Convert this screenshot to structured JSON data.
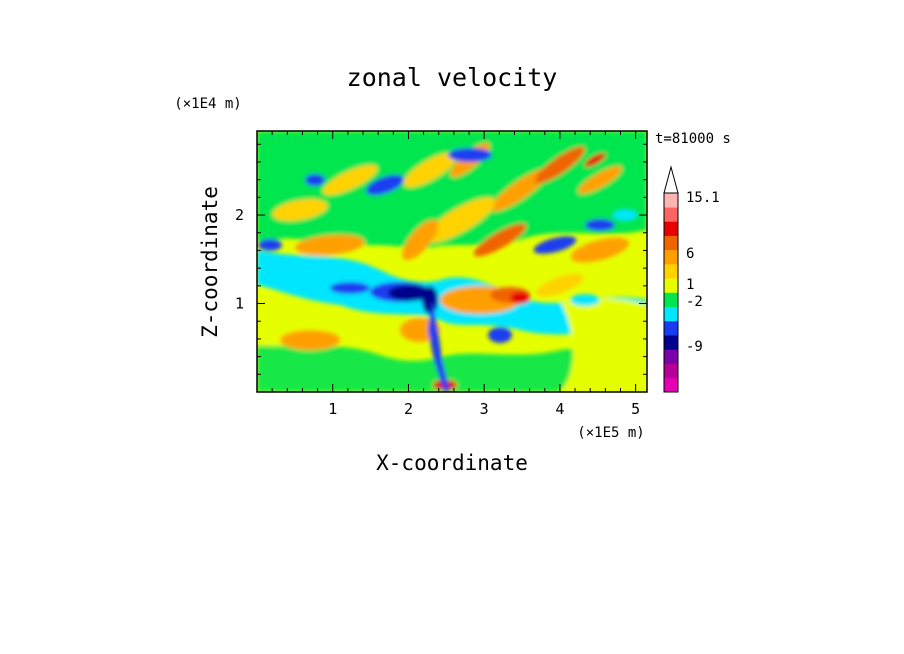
{
  "chart_data": {
    "type": "heatmap",
    "title": "zonal velocity",
    "xlabel": "X-coordinate",
    "ylabel": "Z-coordinate",
    "x_unit": "(×1E5 m)",
    "y_unit": "(×1E4 m)",
    "time_label": "t=81000 s",
    "xlim": [
      0,
      5.15
    ],
    "ylim": [
      0,
      2.95
    ],
    "x_ticks": [
      "1",
      "2",
      "3",
      "4",
      "5"
    ],
    "x_tick_values": [
      1,
      2,
      3,
      4,
      5
    ],
    "y_ticks": [
      "1",
      "2"
    ],
    "y_tick_values": [
      1,
      2
    ],
    "colorbar": {
      "labels": [
        "15.1",
        "6",
        "1",
        "-2",
        "-9"
      ],
      "colors": [
        "#e600b4",
        "#b40096",
        "#7a00a8",
        "#00008c",
        "#1a3cf0",
        "#00e6ff",
        "#00e650",
        "#e6ff00",
        "#ffd200",
        "#ffa000",
        "#f06400",
        "#e60000",
        "#ff6464",
        "#ffb4b4"
      ],
      "extend_top": true
    },
    "field_regions": [
      {
        "name": "background",
        "value": "near-zero positive",
        "color": "#e6ff00"
      },
      {
        "name": "negative jet",
        "value": "strong negative near x=2.0-2.4, z=1.0",
        "color": "#00008c"
      },
      {
        "name": "positive jet",
        "value": "positive near x=3.0-3.5, z=1.0",
        "color": "#ffa000"
      }
    ]
  }
}
